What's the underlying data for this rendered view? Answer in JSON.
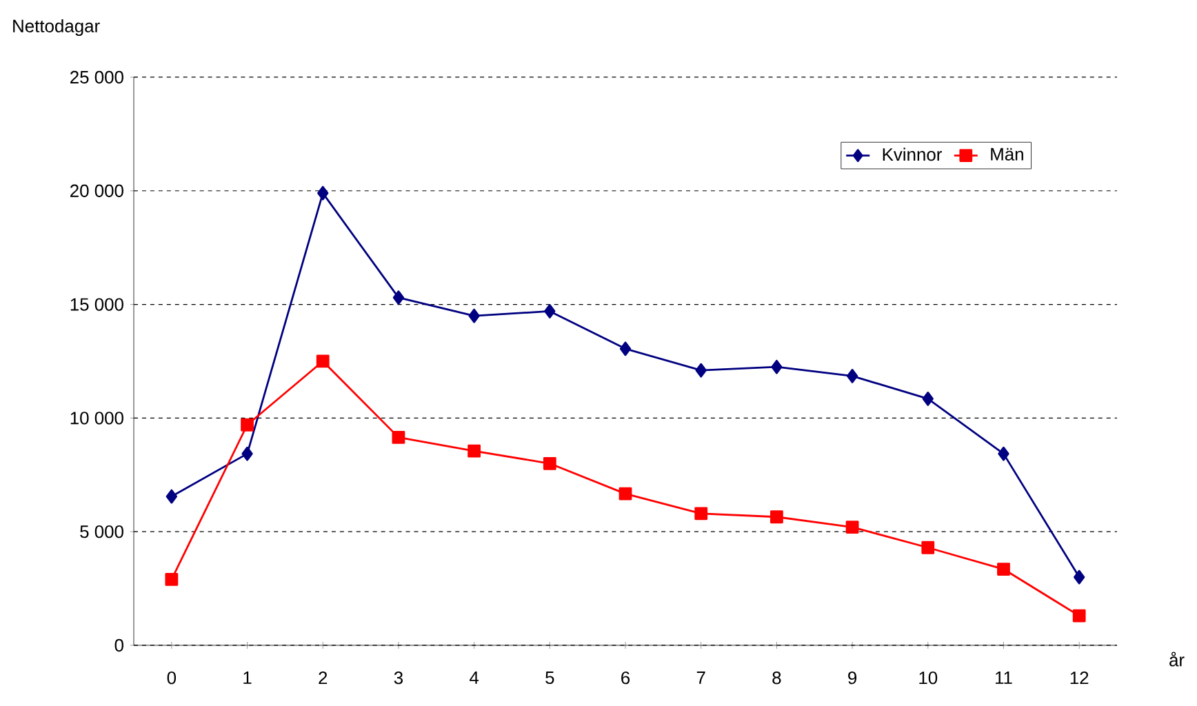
{
  "chart_data": {
    "type": "line",
    "xlabel": "år",
    "ylabel": "Nettodagar",
    "categories": [
      "0",
      "1",
      "2",
      "3",
      "4",
      "5",
      "6",
      "7",
      "8",
      "9",
      "10",
      "11",
      "12"
    ],
    "series": [
      {
        "name": "Kvinnor",
        "color": "#000080",
        "marker": "diamond",
        "values": [
          6550,
          8430,
          19900,
          15300,
          14500,
          14700,
          13050,
          12100,
          12250,
          11850,
          10850,
          8430,
          3000
        ]
      },
      {
        "name": "Män",
        "color": "#ff0000",
        "marker": "square",
        "values": [
          2900,
          9700,
          12500,
          9150,
          8550,
          8000,
          6670,
          5800,
          5650,
          5200,
          4300,
          3350,
          1300
        ]
      }
    ],
    "ylim": [
      0,
      25000
    ],
    "yticks": [
      {
        "value": 0,
        "label": "0"
      },
      {
        "value": 5000,
        "label": "5 000"
      },
      {
        "value": 10000,
        "label": "10 000"
      },
      {
        "value": 15000,
        "label": "15 000"
      },
      {
        "value": 20000,
        "label": "20 000"
      },
      {
        "value": 25000,
        "label": "25 000"
      }
    ],
    "grid": "y",
    "legend": "top right",
    "line_style": "solid"
  }
}
